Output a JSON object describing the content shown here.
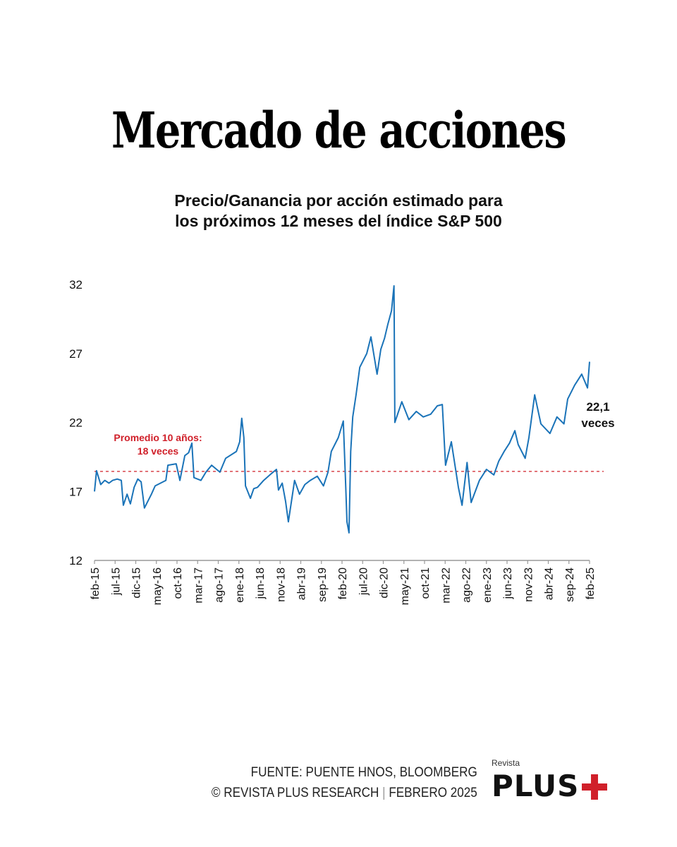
{
  "header": {
    "title": "Mercado de acciones",
    "subtitle_line1": "Precio/Ganancia por acción estimado para",
    "subtitle_line2": "los próximos 12 meses del índice S&P 500"
  },
  "chart_data": {
    "type": "line",
    "title": "Precio/Ganancia por acción estimado para los próximos 12 meses del índice S&P 500",
    "xlabel": "",
    "ylabel": "",
    "ylim": [
      12,
      32
    ],
    "yticks": [
      "12",
      "17",
      "22",
      "27",
      "32"
    ],
    "ytick_values": [
      12,
      17,
      22,
      27,
      32
    ],
    "xlim_months_since_feb15": [
      0,
      120
    ],
    "xticks": [
      "feb-15",
      "jul-15",
      "dic-15",
      "may-16",
      "oct-16",
      "mar-17",
      "ago-17",
      "ene-18",
      "jun-18",
      "nov-18",
      "abr-19",
      "sep-19",
      "feb-20",
      "jul-20",
      "dic-20",
      "may-21",
      "oct-21",
      "mar-22",
      "ago-22",
      "ene-23",
      "jun-23",
      "nov-23",
      "abr-24",
      "sep-24",
      "feb-25"
    ],
    "grid": false,
    "series": [
      {
        "name": "P/E forward S&P 500",
        "color": "#1a73b8",
        "points_month_value": [
          [
            0,
            17.0
          ],
          [
            0.5,
            18.5
          ],
          [
            1.5,
            17.5
          ],
          [
            2.5,
            17.8
          ],
          [
            3.5,
            17.6
          ],
          [
            4.4,
            17.8
          ],
          [
            5.5,
            17.9
          ],
          [
            6.5,
            17.8
          ],
          [
            7,
            16.0
          ],
          [
            7.9,
            16.8
          ],
          [
            8.7,
            16.1
          ],
          [
            9.6,
            17.3
          ],
          [
            10.5,
            17.9
          ],
          [
            11.3,
            17.7
          ],
          [
            12.1,
            15.8
          ],
          [
            13.8,
            16.8
          ],
          [
            14.7,
            17.4
          ],
          [
            16,
            17.6
          ],
          [
            17.3,
            17.8
          ],
          [
            17.8,
            18.9
          ],
          [
            19.8,
            19.0
          ],
          [
            20.7,
            17.8
          ],
          [
            21.9,
            19.6
          ],
          [
            22.8,
            19.8
          ],
          [
            23.6,
            20.5
          ],
          [
            24.1,
            18.0
          ],
          [
            25.8,
            17.8
          ],
          [
            27,
            18.4
          ],
          [
            28.4,
            18.9
          ],
          [
            30.4,
            18.4
          ],
          [
            31.8,
            19.4
          ],
          [
            34.4,
            19.9
          ],
          [
            35.2,
            20.6
          ],
          [
            35.7,
            22.3
          ],
          [
            36.2,
            20.9
          ],
          [
            36.6,
            17.4
          ],
          [
            37.8,
            16.5
          ],
          [
            38.6,
            17.2
          ],
          [
            39.5,
            17.3
          ],
          [
            41,
            17.8
          ],
          [
            42.9,
            18.3
          ],
          [
            44.1,
            18.6
          ],
          [
            44.6,
            17.1
          ],
          [
            45.5,
            17.6
          ],
          [
            46.3,
            16.3
          ],
          [
            47,
            14.8
          ],
          [
            48,
            16.8
          ],
          [
            48.5,
            17.8
          ],
          [
            49.7,
            16.8
          ],
          [
            51,
            17.5
          ],
          [
            52.3,
            17.8
          ],
          [
            54,
            18.1
          ],
          [
            55.5,
            17.4
          ],
          [
            56.6,
            18.4
          ],
          [
            57.4,
            19.9
          ],
          [
            59.1,
            20.9
          ],
          [
            60.3,
            22.1
          ],
          [
            60.9,
            17.3
          ],
          [
            61.2,
            14.8
          ],
          [
            61.7,
            14.0
          ],
          [
            62.1,
            19.9
          ],
          [
            62.6,
            22.4
          ],
          [
            63.4,
            24.0
          ],
          [
            64.3,
            26.0
          ],
          [
            66,
            27.0
          ],
          [
            67,
            28.2
          ],
          [
            68.5,
            25.5
          ],
          [
            69.4,
            27.3
          ],
          [
            70.3,
            28.1
          ],
          [
            71.1,
            29.1
          ],
          [
            72,
            30.1
          ],
          [
            72.6,
            31.9
          ],
          [
            72.8,
            22.0
          ],
          [
            74.5,
            23.5
          ],
          [
            76.2,
            22.2
          ],
          [
            78,
            22.8
          ],
          [
            79.7,
            22.4
          ],
          [
            81.5,
            22.6
          ],
          [
            83.1,
            23.2
          ],
          [
            84.3,
            23.3
          ],
          [
            85.1,
            18.9
          ],
          [
            86.5,
            20.6
          ],
          [
            88.2,
            17.3
          ],
          [
            89.1,
            16.0
          ],
          [
            90.3,
            19.1
          ],
          [
            91.3,
            16.2
          ],
          [
            93.3,
            17.8
          ],
          [
            95,
            18.6
          ],
          [
            96.8,
            18.2
          ],
          [
            98,
            19.2
          ],
          [
            99.3,
            19.9
          ],
          [
            100.6,
            20.5
          ],
          [
            101.9,
            21.4
          ],
          [
            102.7,
            20.4
          ],
          [
            104.4,
            19.4
          ],
          [
            105.3,
            20.9
          ],
          [
            106.7,
            24.0
          ],
          [
            108.2,
            21.9
          ],
          [
            110.4,
            21.2
          ],
          [
            112.1,
            22.4
          ],
          [
            113.8,
            21.9
          ],
          [
            114.7,
            23.7
          ],
          [
            116.4,
            24.7
          ],
          [
            118.1,
            25.5
          ],
          [
            119.5,
            24.5
          ],
          [
            120,
            26.4
          ]
        ]
      }
    ],
    "reference_line": {
      "value": 18.45,
      "color": "#d0202a",
      "style": "dashed"
    },
    "annotations": [
      {
        "text_line1": "Promedio 10 años:",
        "text_line2": "18 veces",
        "color": "#d0202a"
      },
      {
        "text_line1": "22,1",
        "text_line2": "veces",
        "color": "#111111"
      }
    ]
  },
  "footer": {
    "source": "FUENTE: PUENTE HNOS, BLOOMBERG",
    "copyright": "© REVISTA PLUS RESEARCH",
    "separator": "|",
    "date": "FEBRERO 2025"
  },
  "logo": {
    "small": "Revista",
    "big": "PLUS"
  }
}
